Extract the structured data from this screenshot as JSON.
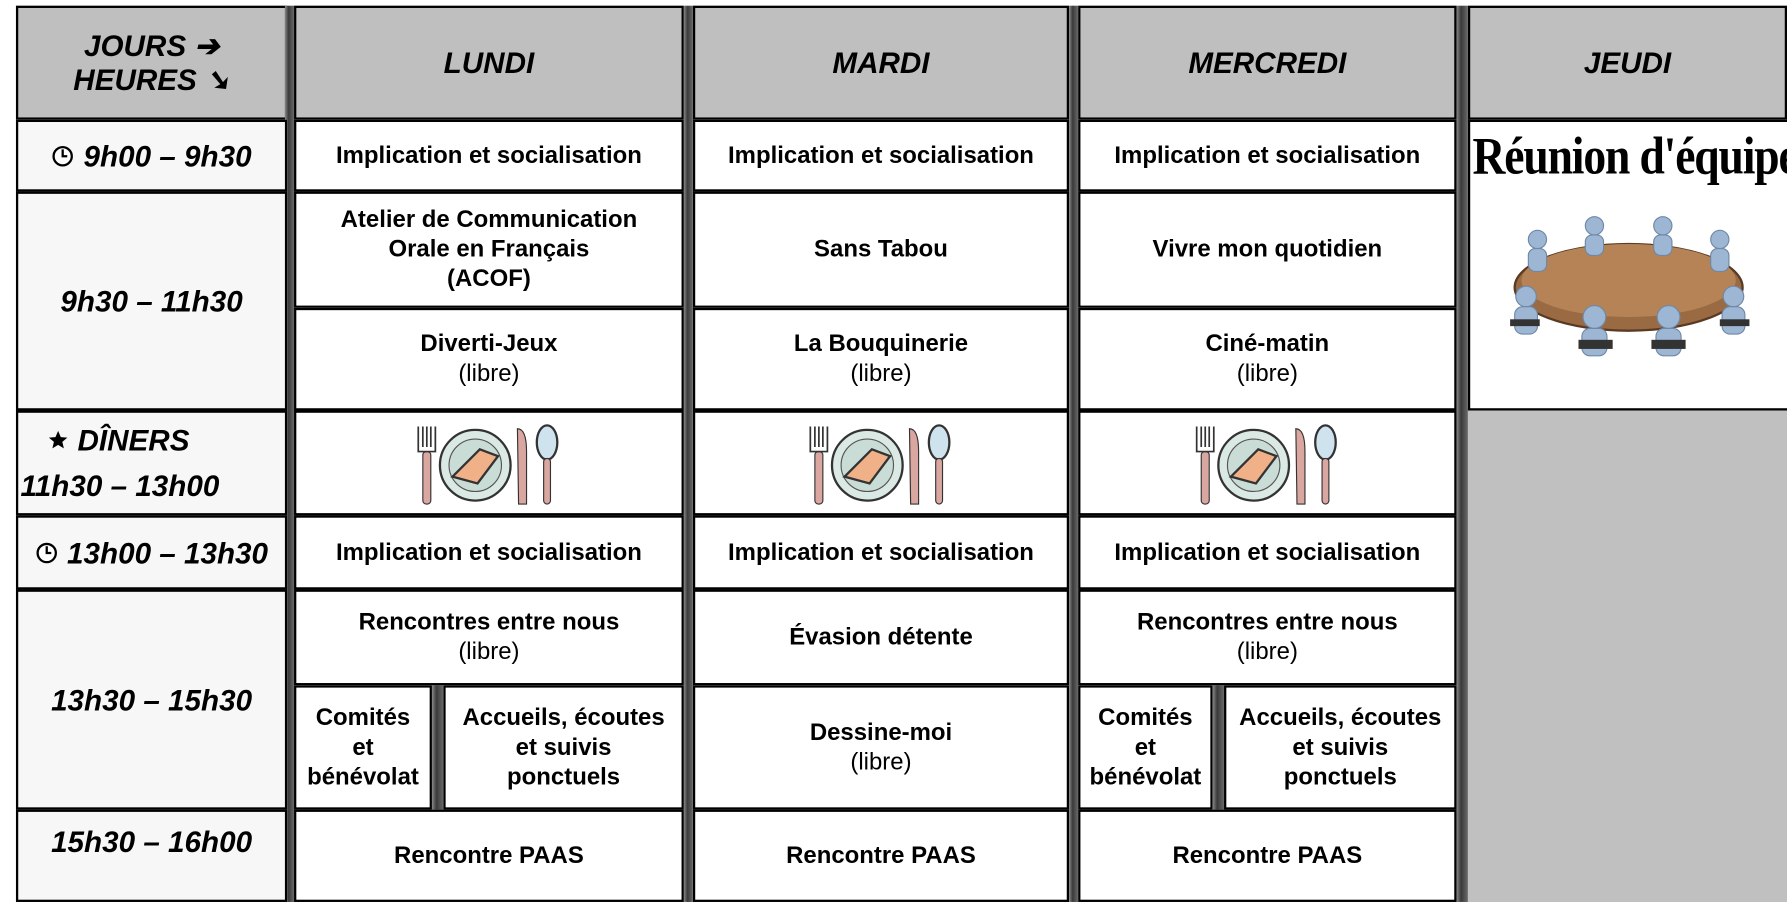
{
  "header": {
    "corner": [
      "JOURS ➔",
      "HEURES ➘"
    ],
    "days": [
      "LUNDI",
      "MARDI",
      "MERCREDI",
      "JEUDI"
    ]
  },
  "times": [
    [
      "9h00 – 9h30"
    ],
    [
      "9h30 – 11h30"
    ],
    [
      "DÎNERS",
      "11h30 – 13h00"
    ],
    [
      "13h00 – 13h30"
    ],
    [
      "13h30 – 15h30"
    ],
    [
      "15h30 – 16h00"
    ]
  ],
  "schedule": [
    [
      {
        "title": [
          "Implication et socialisation"
        ]
      },
      {
        "title": [
          "Atelier de Communication",
          "Orale en Français",
          "(ACOF)"
        ]
      },
      {
        "title": [
          "Diverti-Jeux"
        ],
        "note": "(libre)"
      },
      {
        "title": [
          "Implication et socialisation"
        ]
      },
      {
        "title": [
          "Rencontres entre nous"
        ],
        "note": "(libre)"
      },
      {
        "split": [
          {
            "title": [
              "Comités",
              "et",
              "bénévolat"
            ]
          },
          {
            "title": [
              "Accueils, écoutes",
              "et suivis",
              "ponctuels"
            ]
          }
        ]
      },
      {
        "title": [
          "Rencontre PAAS"
        ]
      }
    ],
    [
      {
        "title": [
          "Implication et socialisation"
        ]
      },
      {
        "title": [
          "Sans Tabou"
        ]
      },
      {
        "title": [
          "La Bouquinerie"
        ],
        "note": "(libre)"
      },
      {
        "title": [
          "Implication et socialisation"
        ]
      },
      {
        "title": [
          "Évasion détente"
        ]
      },
      {
        "title": [
          "Dessine-moi"
        ],
        "note": "(libre)"
      },
      {
        "title": [
          "Rencontre PAAS"
        ]
      }
    ],
    [
      {
        "title": [
          "Implication et socialisation"
        ]
      },
      {
        "title": [
          "Vivre mon quotidien"
        ]
      },
      {
        "title": [
          "Ciné-matin"
        ],
        "note": "(libre)"
      },
      {
        "title": [
          "Implication et socialisation"
        ]
      },
      {
        "title": [
          "Rencontres entre nous"
        ],
        "note": "(libre)"
      },
      {
        "split": [
          {
            "title": [
              "Comités",
              "et",
              "bénévolat"
            ]
          },
          {
            "title": [
              "Accueils, écoutes",
              "et suivis",
              "ponctuels"
            ]
          }
        ]
      },
      {
        "title": [
          "Rencontre PAAS"
        ]
      }
    ]
  ],
  "thursday": {
    "title": "Réunion d'équipe"
  }
}
